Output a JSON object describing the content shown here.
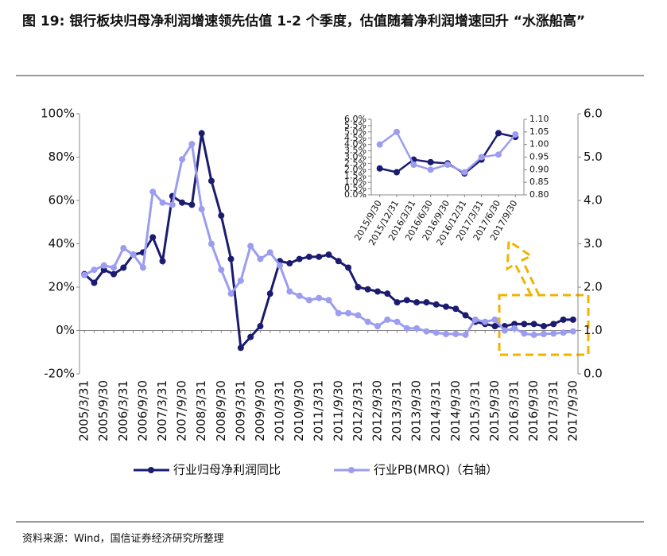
{
  "chart_data": [
    {
      "type": "line",
      "title": "图 19: 银行板块归母净利润增速领先估值 1-2 个季度，估值随着净利润增速回升 “水涨船高”",
      "source": "资料来源：Wind，国信证券经济研究所整理",
      "categories": [
        "2005/3/31",
        null,
        "2005/9/30",
        null,
        "2006/3/31",
        null,
        "2006/9/30",
        null,
        "2007/3/31",
        null,
        "2007/9/30",
        null,
        "2008/3/31",
        null,
        "2008/9/30",
        null,
        "2009/3/31",
        null,
        "2009/9/30",
        null,
        "2010/3/31",
        null,
        "2010/9/30",
        null,
        "2011/3/31",
        null,
        "2011/9/30",
        null,
        "2012/3/31",
        null,
        "2012/9/30",
        null,
        "2013/3/31",
        null,
        "2013/9/30",
        null,
        "2014/3/31",
        null,
        "2014/9/30",
        null,
        "2015/3/31",
        null,
        "2015/9/30",
        null,
        "2016/3/31",
        null,
        "2016/9/30",
        null,
        "2017/3/31",
        null,
        "2017/9/30"
      ],
      "series": [
        {
          "name": "行业归母净利润同比",
          "color": "#1b1b6f",
          "values": [
            26,
            22,
            28,
            26,
            29,
            35,
            36,
            43,
            32,
            62,
            59,
            58,
            91,
            69,
            53,
            33,
            -8,
            -3,
            2,
            17,
            32,
            31,
            33,
            34,
            34,
            35,
            32,
            29,
            20,
            19,
            18,
            17,
            13,
            14,
            13,
            13,
            12,
            11,
            10,
            7,
            4,
            3,
            2,
            2,
            3,
            3,
            3,
            2,
            3,
            5,
            5
          ]
        },
        {
          "name": "行业PB(MRQ)（右轴）",
          "color": "#9c9cf0",
          "axis": "y2",
          "values": [
            2.28,
            2.4,
            2.5,
            2.45,
            2.9,
            2.75,
            2.45,
            4.2,
            3.95,
            3.9,
            4.95,
            5.3,
            3.8,
            3.0,
            2.4,
            1.85,
            2.15,
            2.95,
            2.65,
            2.8,
            2.5,
            1.9,
            1.8,
            1.7,
            1.75,
            1.7,
            1.4,
            1.4,
            1.35,
            1.2,
            1.1,
            1.25,
            1.2,
            1.05,
            1.05,
            0.98,
            0.95,
            0.92,
            0.92,
            0.9,
            1.25,
            1.2,
            1.25,
            1.0,
            1.05,
            0.93,
            0.9,
            0.92,
            0.93,
            0.95,
            0.98
          ]
        }
      ],
      "ylim": [
        -20,
        100
      ],
      "yticks": [
        {
          "value": -20,
          "label": "-20%"
        },
        {
          "value": 0,
          "label": "0%"
        },
        {
          "value": 20,
          "label": "20%"
        },
        {
          "value": 40,
          "label": "40%"
        },
        {
          "value": 60,
          "label": "60%"
        },
        {
          "value": 80,
          "label": "80%"
        },
        {
          "value": 100,
          "label": "100%"
        }
      ],
      "y2lim": [
        0,
        6
      ],
      "y2ticks": [
        {
          "value": 0,
          "label": "0.0"
        },
        {
          "value": 1,
          "label": "1.0"
        },
        {
          "value": 2,
          "label": "2.0"
        },
        {
          "value": 3,
          "label": "3.0"
        },
        {
          "value": 4,
          "label": "4.0"
        },
        {
          "value": 5,
          "label": "5.0"
        },
        {
          "value": 6,
          "label": "6.0"
        }
      ],
      "grid": false,
      "legend": "bottom"
    },
    {
      "type": "line",
      "categories": [
        "2015/9/30",
        "2015/12/31",
        "2016/3/31",
        "2016/6/30",
        "2016/9/30",
        "2016/12/31",
        "2017/3/31",
        "2017/6/30",
        "2017/9/30"
      ],
      "series": [
        {
          "color": "#1b1b6f",
          "values": [
            2.1,
            1.8,
            2.8,
            2.6,
            2.5,
            1.7,
            2.8,
            4.9,
            4.6
          ]
        },
        {
          "color": "#9c9cf0",
          "axis": "y2",
          "values": [
            1.0,
            1.05,
            0.92,
            0.9,
            0.92,
            0.89,
            0.95,
            0.96,
            1.04
          ]
        }
      ],
      "ylim": [
        0,
        6
      ],
      "yticks": [
        {
          "value": 0,
          "label": "0.0%"
        },
        {
          "value": 0.5,
          "label": "0.5%"
        },
        {
          "value": 1,
          "label": "1.0%"
        },
        {
          "value": 1.5,
          "label": "1.5%"
        },
        {
          "value": 2,
          "label": "2.0%"
        },
        {
          "value": 2.5,
          "label": "2.5%"
        },
        {
          "value": 3,
          "label": "3.0%"
        },
        {
          "value": 3.5,
          "label": "3.5%"
        },
        {
          "value": 4,
          "label": "4.0%"
        },
        {
          "value": 4.5,
          "label": "4.5%"
        },
        {
          "value": 5,
          "label": "5.0%"
        },
        {
          "value": 5.5,
          "label": "5.5%"
        },
        {
          "value": 6,
          "label": "6.0%"
        }
      ],
      "y2lim": [
        0.8,
        1.1
      ],
      "y2ticks": [
        {
          "value": 0.8,
          "label": "0.80"
        },
        {
          "value": 0.85,
          "label": "0.85"
        },
        {
          "value": 0.9,
          "label": "0.90"
        },
        {
          "value": 0.95,
          "label": "0.95"
        },
        {
          "value": 1.0,
          "label": "1.00"
        },
        {
          "value": 1.05,
          "label": "1.05"
        },
        {
          "value": 1.1,
          "label": "1.10"
        }
      ],
      "grid": false
    }
  ]
}
